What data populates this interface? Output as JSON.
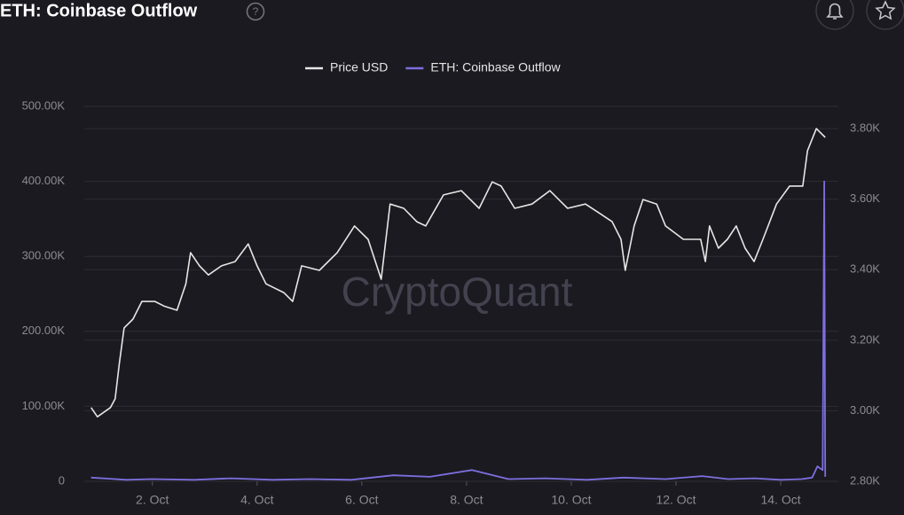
{
  "chart_data": {
    "type": "line",
    "title": "ETH: Coinbase Outflow",
    "watermark": "CryptoQuant",
    "xlim": [
      0.7,
      15.1
    ],
    "xticks": [
      {
        "value": 2,
        "label": "2. Oct"
      },
      {
        "value": 4,
        "label": "4. Oct"
      },
      {
        "value": 6,
        "label": "6. Oct"
      },
      {
        "value": 8,
        "label": "8. Oct"
      },
      {
        "value": 10,
        "label": "10. Oct"
      },
      {
        "value": 12,
        "label": "12. Oct"
      },
      {
        "value": 14,
        "label": "14. Oct"
      }
    ],
    "ylim": [
      0,
      500000
    ],
    "yticks": [
      0,
      {
        "value": 100000,
        "label": "100.00K"
      },
      {
        "value": 200000,
        "label": "200.00K"
      },
      {
        "value": 300000,
        "label": "300.00K"
      },
      {
        "value": 400000,
        "label": "400.00K"
      },
      {
        "value": 500000,
        "label": "500.00K"
      }
    ],
    "y2lim": [
      2800,
      3863
    ],
    "y2ticks": [
      {
        "value": 2800,
        "label": "2.80K"
      },
      {
        "value": 3000,
        "label": "3.00K"
      },
      {
        "value": 3200,
        "label": "3.20K"
      },
      {
        "value": 3400,
        "label": "3.40K"
      },
      {
        "value": 3600,
        "label": "3.60K"
      },
      {
        "value": 3800,
        "label": "3.80K"
      }
    ],
    "grid": true,
    "legend": "top",
    "series": [
      {
        "name": "Price USD",
        "color": "#e6e6e6",
        "axis": "y2",
        "x": [
          0.83,
          0.95,
          1.2,
          1.29,
          1.37,
          1.46,
          1.63,
          1.8,
          2.05,
          2.22,
          2.47,
          2.64,
          2.73,
          2.9,
          3.07,
          3.32,
          3.58,
          3.83,
          4.0,
          4.17,
          4.51,
          4.68,
          4.85,
          5.19,
          5.53,
          5.86,
          6.12,
          6.37,
          6.54,
          6.8,
          7.05,
          7.22,
          7.56,
          7.9,
          8.24,
          8.49,
          8.66,
          8.92,
          9.25,
          9.59,
          9.93,
          10.27,
          10.53,
          10.78,
          10.95,
          11.03,
          11.2,
          11.37,
          11.63,
          11.8,
          12.14,
          12.47,
          12.56,
          12.64,
          12.81,
          12.98,
          13.15,
          13.32,
          13.49,
          13.66,
          13.92,
          14.17,
          14.42,
          14.51,
          14.68,
          14.85
        ],
        "values": [
          3009,
          2983,
          3009,
          3034,
          3134,
          3235,
          3260,
          3310,
          3310,
          3297,
          3285,
          3360,
          3448,
          3411,
          3385,
          3411,
          3423,
          3473,
          3411,
          3360,
          3335,
          3310,
          3411,
          3398,
          3448,
          3524,
          3486,
          3373,
          3586,
          3574,
          3536,
          3524,
          3612,
          3624,
          3574,
          3649,
          3637,
          3574,
          3586,
          3624,
          3574,
          3586,
          3561,
          3536,
          3486,
          3398,
          3524,
          3599,
          3586,
          3524,
          3486,
          3486,
          3423,
          3524,
          3461,
          3486,
          3524,
          3461,
          3423,
          3486,
          3586,
          3637,
          3637,
          3737,
          3800,
          3775
        ]
      },
      {
        "name": "ETH: Coinbase Outflow",
        "color": "#7d6fe0",
        "x": [
          0.83,
          1.5,
          2.0,
          2.8,
          3.5,
          4.3,
          5.0,
          5.8,
          6.6,
          7.3,
          8.1,
          8.8,
          9.5,
          10.3,
          11.0,
          11.8,
          12.5,
          13.0,
          13.5,
          14.0,
          14.4,
          14.6,
          14.7,
          14.8,
          14.83,
          14.85
        ],
        "values": [
          5000,
          2000,
          3000,
          2000,
          4000,
          2000,
          3000,
          2000,
          8000,
          6000,
          15000,
          3000,
          4000,
          2000,
          5000,
          3000,
          7000,
          3000,
          4000,
          2000,
          3000,
          5000,
          20000,
          15000,
          400000,
          6000
        ]
      }
    ]
  }
}
